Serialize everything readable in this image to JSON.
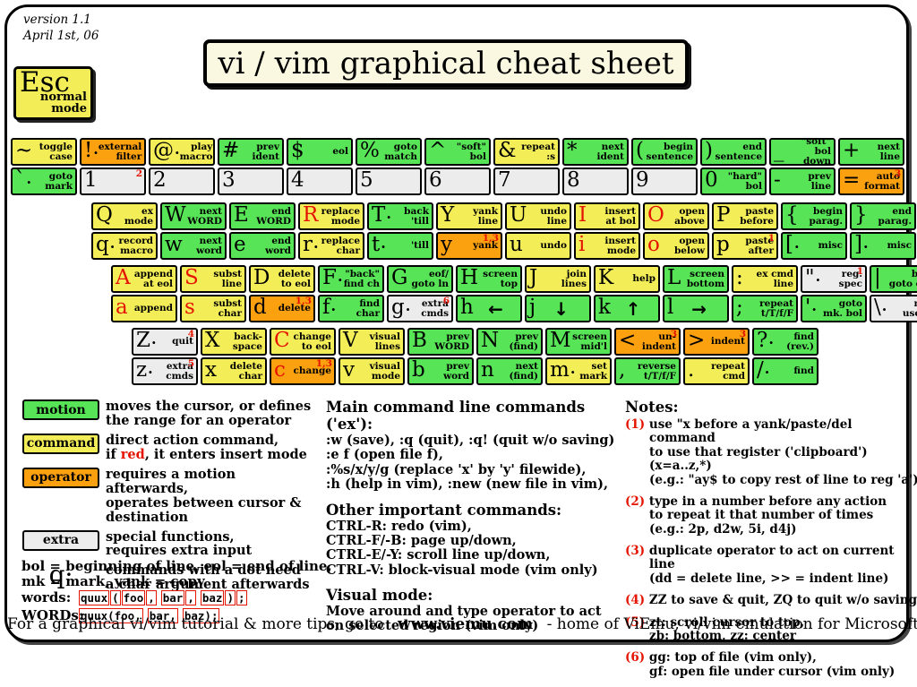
{
  "header": {
    "version_line1": "version 1.1",
    "version_line2": "April 1st, 06",
    "title": "vi / vim graphical cheat sheet"
  },
  "esc": {
    "glyph": "Esc",
    "label": "normal\nmode"
  },
  "colors": {
    "motion": "#57e557",
    "command": "#f3ee58",
    "operator": "#fba00f",
    "extra": "#ececec",
    "red": "#e51400",
    "title_bg": "#fbf8e1"
  },
  "keyboard": {
    "rows": [
      {
        "keys": [
          {
            "name": "backtick",
            "top": {
              "g": "~",
              "l": "toggle\ncase",
              "t": "c"
            },
            "bottom": {
              "g": "`",
              "d": 1,
              "l": "goto\nmark",
              "t": "m"
            }
          },
          {
            "name": "1",
            "top": {
              "g": "!",
              "d": 1,
              "l": "external\nfilter",
              "t": "o"
            },
            "bottom": {
              "g": "1",
              "l": "",
              "t": "e",
              "n": "2"
            }
          },
          {
            "name": "2",
            "top": {
              "g": "@",
              "d": 1,
              "l": "play\nmacro",
              "t": "c"
            },
            "bottom": {
              "g": "2",
              "l": "",
              "t": "e"
            }
          },
          {
            "name": "3",
            "top": {
              "g": "#",
              "l": "prev\nident",
              "t": "m"
            },
            "bottom": {
              "g": "3",
              "l": "",
              "t": "e"
            }
          },
          {
            "name": "4",
            "top": {
              "g": "$",
              "l": "eol",
              "t": "m"
            },
            "bottom": {
              "g": "4",
              "l": "",
              "t": "e"
            }
          },
          {
            "name": "5",
            "top": {
              "g": "%",
              "l": "goto\nmatch",
              "t": "m"
            },
            "bottom": {
              "g": "5",
              "l": "",
              "t": "e"
            }
          },
          {
            "name": "6",
            "top": {
              "g": "^",
              "l": "\"soft\"\nbol",
              "t": "m"
            },
            "bottom": {
              "g": "6",
              "l": "",
              "t": "e"
            }
          },
          {
            "name": "7",
            "top": {
              "g": "&",
              "l": "repeat\n:s",
              "t": "c"
            },
            "bottom": {
              "g": "7",
              "l": "",
              "t": "e"
            }
          },
          {
            "name": "8",
            "top": {
              "g": "*",
              "l": "next\nident",
              "t": "m"
            },
            "bottom": {
              "g": "8",
              "l": "",
              "t": "e"
            }
          },
          {
            "name": "9",
            "top": {
              "g": "(",
              "l": "begin\nsentence",
              "t": "m"
            },
            "bottom": {
              "g": "9",
              "l": "",
              "t": "e"
            }
          },
          {
            "name": "0",
            "top": {
              "g": ")",
              "l": "end\nsentence",
              "t": "m"
            },
            "bottom": {
              "g": "0",
              "l": "\"hard\"\nbol",
              "t": "m"
            }
          },
          {
            "name": "minus",
            "top": {
              "g": "_",
              "l": "\"soft\" bol\ndown",
              "t": "m"
            },
            "bottom": {
              "g": "-",
              "l": "prev\nline",
              "t": "m"
            }
          },
          {
            "name": "equals",
            "top": {
              "g": "+",
              "l": "next\nline",
              "t": "m"
            },
            "bottom": {
              "g": "=",
              "l": "auto\nformat",
              "t": "o",
              "n": "3"
            }
          }
        ]
      },
      {
        "keys": [
          {
            "name": "q",
            "top": {
              "g": "Q",
              "l": "ex\nmode",
              "t": "c"
            },
            "bottom": {
              "g": "q",
              "d": 1,
              "l": "record\nmacro",
              "t": "c"
            }
          },
          {
            "name": "w",
            "top": {
              "g": "W",
              "l": "next\nWORD",
              "t": "m"
            },
            "bottom": {
              "g": "w",
              "l": "next\nword",
              "t": "m"
            }
          },
          {
            "name": "e",
            "top": {
              "g": "E",
              "l": "end\nWORD",
              "t": "m"
            },
            "bottom": {
              "g": "e",
              "l": "end\nword",
              "t": "m"
            }
          },
          {
            "name": "r",
            "top": {
              "g": "R",
              "r": 1,
              "l": "replace\nmode",
              "t": "c"
            },
            "bottom": {
              "g": "r",
              "d": 1,
              "l": "replace\nchar",
              "t": "c"
            }
          },
          {
            "name": "t",
            "top": {
              "g": "T",
              "d": 1,
              "l": "back\n'till",
              "t": "m"
            },
            "bottom": {
              "g": "t",
              "d": 1,
              "l": "'till",
              "t": "m"
            }
          },
          {
            "name": "y",
            "top": {
              "g": "Y",
              "l": "yank\nline",
              "t": "c"
            },
            "bottom": {
              "g": "y",
              "l": "yank",
              "t": "o",
              "n": "1,3"
            }
          },
          {
            "name": "u",
            "top": {
              "g": "U",
              "l": "undo\nline",
              "t": "c"
            },
            "bottom": {
              "g": "u",
              "l": "undo",
              "t": "c"
            }
          },
          {
            "name": "i",
            "top": {
              "g": "I",
              "r": 1,
              "l": "insert\nat bol",
              "t": "c"
            },
            "bottom": {
              "g": "i",
              "r": 1,
              "l": "insert\nmode",
              "t": "c"
            }
          },
          {
            "name": "o",
            "top": {
              "g": "O",
              "r": 1,
              "l": "open\nabove",
              "t": "c"
            },
            "bottom": {
              "g": "o",
              "r": 1,
              "l": "open\nbelow",
              "t": "c"
            }
          },
          {
            "name": "p",
            "top": {
              "g": "P",
              "l": "paste\nbefore",
              "t": "c"
            },
            "bottom": {
              "g": "p",
              "l": "paste\nafter",
              "t": "c",
              "n": "1"
            }
          },
          {
            "name": "bracket-left",
            "top": {
              "g": "{",
              "l": "begin\nparag.",
              "t": "m"
            },
            "bottom": {
              "g": "[",
              "d": 1,
              "l": "misc",
              "t": "m"
            }
          },
          {
            "name": "bracket-right",
            "top": {
              "g": "}",
              "l": "end\nparag.",
              "t": "m"
            },
            "bottom": {
              "g": "]",
              "d": 1,
              "l": "misc",
              "t": "m"
            }
          }
        ]
      },
      {
        "keys": [
          {
            "name": "a",
            "top": {
              "g": "A",
              "r": 1,
              "l": "append\nat eol",
              "t": "c"
            },
            "bottom": {
              "g": "a",
              "r": 1,
              "l": "append",
              "t": "c"
            }
          },
          {
            "name": "s",
            "top": {
              "g": "S",
              "r": 1,
              "l": "subst\nline",
              "t": "c"
            },
            "bottom": {
              "g": "s",
              "r": 1,
              "l": "subst\nchar",
              "t": "c"
            }
          },
          {
            "name": "d",
            "top": {
              "g": "D",
              "l": "delete\nto eol",
              "t": "c"
            },
            "bottom": {
              "g": "d",
              "l": "delete",
              "t": "o",
              "n": "1,3"
            }
          },
          {
            "name": "f",
            "top": {
              "g": "F",
              "d": 1,
              "l": "\"back\"\nfind ch",
              "t": "m"
            },
            "bottom": {
              "g": "f",
              "d": 1,
              "l": "find\nchar",
              "t": "m"
            }
          },
          {
            "name": "g",
            "top": {
              "g": "G",
              "l": "eof/\ngoto ln",
              "t": "m"
            },
            "bottom": {
              "g": "g",
              "d": 1,
              "l": "extra\ncmds",
              "t": "e",
              "n": "6"
            }
          },
          {
            "name": "h",
            "top": {
              "g": "H",
              "l": "screen\ntop",
              "t": "m"
            },
            "bottom": {
              "g": "h",
              "l": "←",
              "t": "m",
              "arrow": 1
            }
          },
          {
            "name": "j",
            "top": {
              "g": "J",
              "l": "join\nlines",
              "t": "c"
            },
            "bottom": {
              "g": "j",
              "l": "↓",
              "t": "m",
              "arrow": 1
            }
          },
          {
            "name": "k",
            "top": {
              "g": "K",
              "l": "help",
              "t": "c"
            },
            "bottom": {
              "g": "k",
              "l": "↑",
              "t": "m",
              "arrow": 1
            }
          },
          {
            "name": "l",
            "top": {
              "g": "L",
              "l": "screen\nbottom",
              "t": "m"
            },
            "bottom": {
              "g": "l",
              "l": "→",
              "t": "m",
              "arrow": 1
            }
          },
          {
            "name": "semicolon",
            "top": {
              "g": ":",
              "l": "ex cmd\nline",
              "t": "c"
            },
            "bottom": {
              "g": ";",
              "l": "repeat\nt/T/f/F",
              "t": "m"
            }
          },
          {
            "name": "quote",
            "top": {
              "g": "\"",
              "d": 1,
              "l": "reg.\nspec",
              "t": "e",
              "n": "1"
            },
            "bottom": {
              "g": "'",
              "d": 1,
              "l": "goto\nmk. bol",
              "t": "m"
            }
          },
          {
            "name": "backslash",
            "top": {
              "g": "|",
              "l": "bol/\ngoto col",
              "t": "m"
            },
            "bottom": {
              "g": "\\",
              "d": 1,
              "l": "not\nused!",
              "t": "e"
            }
          }
        ]
      },
      {
        "keys": [
          {
            "name": "z",
            "top": {
              "g": "Z",
              "d": 1,
              "l": "quit",
              "t": "e",
              "n": "4"
            },
            "bottom": {
              "g": "z",
              "d": 1,
              "l": "extra\ncmds",
              "t": "e",
              "n": "5"
            }
          },
          {
            "name": "x",
            "top": {
              "g": "X",
              "l": "back-\nspace",
              "t": "c"
            },
            "bottom": {
              "g": "x",
              "l": "delete\nchar",
              "t": "c"
            }
          },
          {
            "name": "c",
            "top": {
              "g": "C",
              "r": 1,
              "l": "change\nto eol",
              "t": "c"
            },
            "bottom": {
              "g": "c",
              "r": 1,
              "l": "change",
              "t": "o",
              "n": "1,3"
            }
          },
          {
            "name": "v",
            "top": {
              "g": "V",
              "l": "visual\nlines",
              "t": "c"
            },
            "bottom": {
              "g": "v",
              "l": "visual\nmode",
              "t": "c"
            }
          },
          {
            "name": "b",
            "top": {
              "g": "B",
              "l": "prev\nWORD",
              "t": "m"
            },
            "bottom": {
              "g": "b",
              "l": "prev\nword",
              "t": "m"
            }
          },
          {
            "name": "n",
            "top": {
              "g": "N",
              "l": "prev\n(find)",
              "t": "m"
            },
            "bottom": {
              "g": "n",
              "l": "next\n(find)",
              "t": "m"
            }
          },
          {
            "name": "m",
            "top": {
              "g": "M",
              "l": "screen\nmid'l",
              "t": "m"
            },
            "bottom": {
              "g": "m",
              "d": 1,
              "l": "set\nmark",
              "t": "c"
            }
          },
          {
            "name": "comma",
            "top": {
              "g": "<",
              "l": "un-\nindent",
              "t": "o",
              "n": "3"
            },
            "bottom": {
              "g": ",",
              "l": "reverse\nt/T/f/F",
              "t": "m"
            }
          },
          {
            "name": "period",
            "top": {
              "g": ">",
              "l": "indent",
              "t": "o",
              "n": "3"
            },
            "bottom": {
              "g": ".",
              "l": "repeat\ncmd",
              "t": "c"
            }
          },
          {
            "name": "slash",
            "top": {
              "g": "?",
              "d": 1,
              "l": "find\n(rev.)",
              "t": "m"
            },
            "bottom": {
              "g": "/",
              "d": 1,
              "l": "find",
              "t": "m"
            }
          }
        ]
      }
    ]
  },
  "legend": {
    "items": [
      {
        "swatch": "motion",
        "type": "motion",
        "parts": [
          {
            "t": "moves the cursor, or defines\nthe range for an operator"
          }
        ]
      },
      {
        "swatch": "command",
        "type": "command",
        "parts": [
          {
            "t": "direct action command,\nif "
          },
          {
            "t": "red",
            "red": true
          },
          {
            "t": ", it enters insert mode"
          }
        ]
      },
      {
        "swatch": "operator",
        "type": "operator",
        "parts": [
          {
            "t": "requires a motion afterwards,\noperates between cursor &\ndestination"
          }
        ]
      },
      {
        "swatch": "extra",
        "type": "extra",
        "parts": [
          {
            "t": "special functions,\nrequires extra input"
          }
        ]
      },
      {
        "glyph": "q·",
        "parts": [
          {
            "t": "commands with a dot need\na char argument afterwards"
          }
        ]
      }
    ]
  },
  "abbreviations": "bol = beginning of line, eol = end of line,\nmk = mark, yank = copy",
  "word_examples": {
    "rows": [
      {
        "label": "words:",
        "tokens": [
          "quux",
          "(",
          "foo",
          ",",
          "bar",
          ",",
          "baz",
          ")",
          ";"
        ]
      },
      {
        "label": "WORDs:",
        "tokens": [
          "quux(foo,",
          "bar,",
          "baz);"
        ]
      }
    ]
  },
  "ex_sections": [
    {
      "title": "Main command line commands ('ex'):",
      "body": ":w (save), :q (quit), :q! (quit w/o saving)\n:e f (open file f),\n:%s/x/y/g (replace 'x' by 'y' filewide),\n:h (help in vim), :new (new file in vim),"
    },
    {
      "title": "Other important commands:",
      "body": "CTRL-R: redo (vim),\nCTRL-F/-B: page up/down,\nCTRL-E/-Y: scroll line up/down,\nCTRL-V: block-visual mode (vim only)"
    },
    {
      "title": "Visual mode:",
      "body": "Move around and type operator to act\non selected region (vim only)"
    }
  ],
  "notes": {
    "title": "Notes:",
    "items": [
      {
        "num": "(1)",
        "text": "use \"x before a yank/paste/del command\nto use that register ('clipboard') (x=a..z,*)\n(e.g.: \"ay$ to copy rest of line to reg 'a')"
      },
      {
        "num": "(2)",
        "text": "type in a number before any action\nto repeat it that number of times\n(e.g.: 2p, d2w, 5i, d4j)"
      },
      {
        "num": "(3)",
        "text": "duplicate operator to act on current line\n(dd = delete line, >> = indent line)"
      },
      {
        "num": "(4)",
        "text": "ZZ to save & quit, ZQ to quit w/o saving"
      },
      {
        "num": "(5)",
        "text": "zt: scroll cursor to top,\nzb: bottom, zz: center"
      },
      {
        "num": "(6)",
        "text": "gg: top of file (vim only),\ngf: open file under cursor (vim only)"
      }
    ]
  },
  "footer": {
    "pre": "For a graphical vi/vim tutorial & more tips, go to",
    "site": "www.viemu.com",
    "post": "- home of ViEmu, vi/vim emulation for Microsoft Visual Studio"
  }
}
